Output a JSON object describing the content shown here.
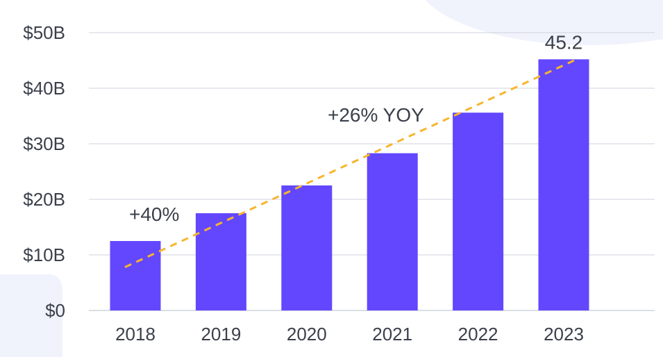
{
  "chart_data": {
    "type": "bar",
    "categories": [
      "2018",
      "2019",
      "2020",
      "2021",
      "2022",
      "2023"
    ],
    "values": [
      12.5,
      17.5,
      22.5,
      28.3,
      35.6,
      45.2
    ],
    "ylim": [
      0,
      50
    ],
    "y_ticks": [
      0,
      10,
      20,
      30,
      40,
      50
    ],
    "y_tick_labels": [
      "$0",
      "$10B",
      "$20B",
      "$30B",
      "$40B",
      "$50B"
    ],
    "grid": true,
    "data_labels": [
      {
        "category": "2023",
        "text": "45.2"
      }
    ],
    "annotations": [
      "+40%",
      "+26% YOY"
    ],
    "trendline": {
      "style": "dashed",
      "x": [
        "2018",
        "2023"
      ],
      "y": [
        7.8,
        45.0
      ]
    },
    "colors": {
      "bar": "#6247ff",
      "trend": "#f7b52c",
      "grid": "#cfd3dc",
      "text": "#3a3f4a",
      "backdrop": "#f0f2fc"
    }
  }
}
